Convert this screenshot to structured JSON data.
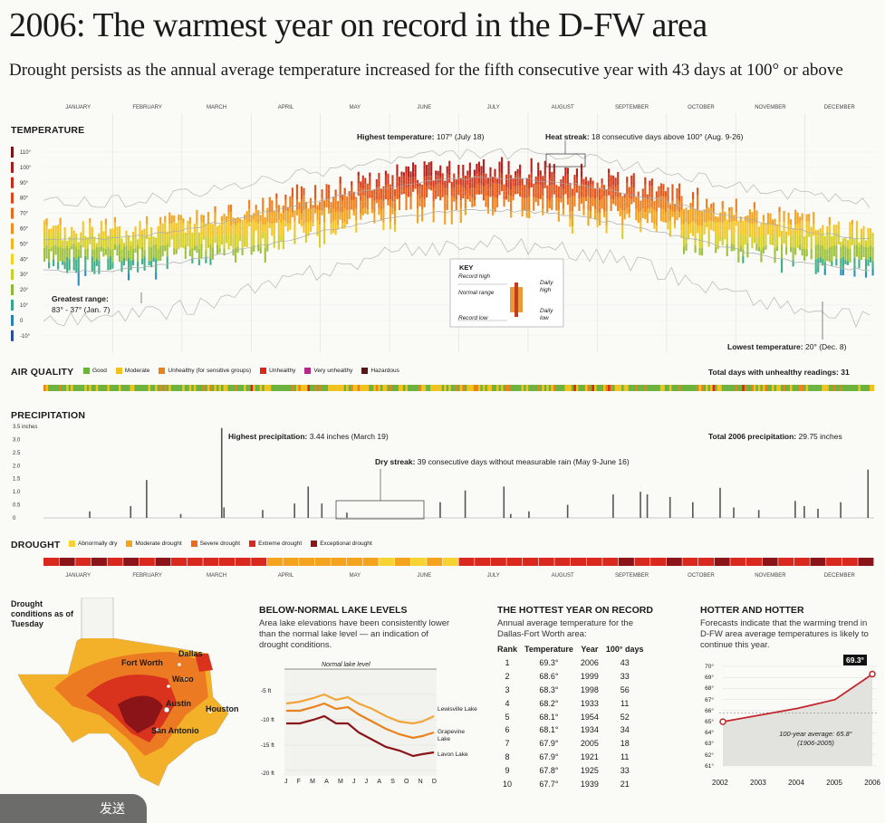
{
  "title": "2006: The warmest year on record in the D-FW area",
  "subtitle": "Drought persists as the annual average temperature increased for the fifth consecutive year with 43 days at 100° or above",
  "months": [
    "JANUARY",
    "FEBRUARY",
    "MARCH",
    "APRIL",
    "MAY",
    "JUNE",
    "JULY",
    "AUGUST",
    "SEPTEMBER",
    "OCTOBER",
    "NOVEMBER",
    "DECEMBER"
  ],
  "temperature": {
    "heading": "TEMPERATURE",
    "ticks": [
      "110°",
      "100°",
      "90°",
      "80°",
      "70°",
      "60°",
      "50°",
      "40°",
      "30°",
      "20°",
      "10°",
      "0",
      "-10°"
    ],
    "tick_colors": [
      "#7a1414",
      "#a51c1c",
      "#c92a1e",
      "#d9471c",
      "#e56a1c",
      "#ef8f1f",
      "#f3b51f",
      "#f2d322",
      "#c8cf2a",
      "#8ab93a",
      "#3aa58a",
      "#2a7fb5",
      "#2a4f9a"
    ],
    "highest_label": "Highest temperature:",
    "highest_value": "107° (July 18)",
    "streak_label": "Heat streak:",
    "streak_value": "18 consecutive days above 100° (Aug. 9-26)",
    "range_label": "Greatest range:",
    "range_value": "83° - 37° (Jan. 7)",
    "lowest_label": "Lowest temperature:",
    "lowest_value": "20° (Dec. 8)",
    "key": {
      "title": "KEY",
      "record_high": "Record high",
      "normal_range": "Normal range",
      "record_low": "Record low",
      "daily_high": "Daily high",
      "daily_low": "Daily low"
    }
  },
  "air_quality": {
    "heading": "AIR QUALITY",
    "legend": [
      {
        "label": "Good",
        "color": "#6cb33e"
      },
      {
        "label": "Moderate",
        "color": "#f2c21c"
      },
      {
        "label": "Unhealthy (for sensitive groups)",
        "color": "#e8821c"
      },
      {
        "label": "Unhealthy",
        "color": "#d9261c"
      },
      {
        "label": "Very unhealthy",
        "color": "#b02a86"
      },
      {
        "label": "Hazardous",
        "color": "#5a1416"
      }
    ],
    "total_label": "Total days with unhealthy readings:",
    "total_value": "31"
  },
  "precipitation": {
    "heading": "PRECIPITATION",
    "ticks": [
      "3.5 inches",
      "3.0",
      "2.5",
      "2.0",
      "1.5",
      "1.0",
      "0.5",
      "0"
    ],
    "highest_label": "Highest precipitation:",
    "highest_value": "3.44 inches (March 19)",
    "total_label": "Total 2006 precipitation:",
    "total_value": "29.75 inches",
    "dry_label": "Dry streak:",
    "dry_value": "39 consecutive days without measurable rain (May 9-June 16)"
  },
  "drought": {
    "heading": "DROUGHT",
    "legend": [
      {
        "label": "Abnormally dry",
        "color": "#f7d233"
      },
      {
        "label": "Moderate drought",
        "color": "#f3a31e"
      },
      {
        "label": "Severe drought",
        "color": "#ec6a1e"
      },
      {
        "label": "Extreme drought",
        "color": "#d9281e"
      },
      {
        "label": "Exceptional drought",
        "color": "#8a1418"
      }
    ]
  },
  "map": {
    "title": "Drought conditions as of Tuesday",
    "cities": [
      "Fort Worth",
      "Dallas",
      "Waco",
      "Austin",
      "Houston",
      "San Antonio"
    ]
  },
  "lake_panel": {
    "title": "BELOW-NORMAL LAKE LEVELS",
    "text": "Area lake elevations have been consistently lower than the normal lake level — an indication of drought conditions.",
    "normal_label": "Normal lake level",
    "y_ticks": [
      "-5 ft",
      "-10 ft",
      "-15 ft",
      "-20 ft"
    ],
    "x_ticks": [
      "J",
      "F",
      "M",
      "A",
      "M",
      "J",
      "J",
      "A",
      "S",
      "O",
      "N",
      "D"
    ],
    "lakes": [
      {
        "name": "Lewisville Lake",
        "color": "#f0a53a"
      },
      {
        "name": "Grapevine Lake",
        "color": "#e8821c"
      },
      {
        "name": "Lavon Lake",
        "color": "#8a1418"
      }
    ]
  },
  "hottest_panel": {
    "title": "THE HOTTEST YEAR ON RECORD",
    "text": "Annual average temperature for the Dallas-Fort Worth area:",
    "headers": [
      "Rank",
      "Temperature",
      "Year",
      "100° days"
    ],
    "rows": [
      [
        "1",
        "69.3°",
        "2006",
        "43"
      ],
      [
        "2",
        "68.6°",
        "1999",
        "33"
      ],
      [
        "3",
        "68.3°",
        "1998",
        "56"
      ],
      [
        "4",
        "68.2°",
        "1933",
        "11"
      ],
      [
        "5",
        "68.1°",
        "1954",
        "52"
      ],
      [
        "6",
        "68.1°",
        "1934",
        "34"
      ],
      [
        "7",
        "67.9°",
        "2005",
        "18"
      ],
      [
        "8",
        "67.9°",
        "1921",
        "11"
      ],
      [
        "9",
        "67.8°",
        "1925",
        "33"
      ],
      [
        "10",
        "67.7°",
        "1939",
        "21"
      ]
    ]
  },
  "hotter_panel": {
    "title": "HOTTER AND HOTTER",
    "text": "Forecasts indicate that the warming trend in D-FW area average temperatures is likely to continue this year.",
    "callout": "69.3°",
    "average_note": "100-year average: 65.8° (1906-2005)",
    "y_ticks": [
      "70°",
      "69°",
      "68°",
      "67°",
      "66°",
      "65°",
      "64°",
      "63°",
      "62°",
      "61°"
    ],
    "x_ticks": [
      "2002",
      "2003",
      "2004",
      "2005",
      "2006"
    ]
  },
  "chart_data": [
    {
      "type": "line",
      "title": "2006: The warmest year on record in the D-FW area",
      "ylabel": "TEMPERATURE",
      "ylim": [
        -10,
        110
      ],
      "note": "Daily high/low bars approximated from gridlines",
      "annotations": [
        {
          "label": "Highest temperature",
          "value": 107,
          "date": "July 18"
        },
        {
          "label": "Greatest range",
          "high": 83,
          "low": 37,
          "date": "Jan. 7"
        },
        {
          "label": "Lowest temperature",
          "value": 20,
          "date": "Dec. 8"
        }
      ]
    },
    {
      "type": "bar",
      "title": "PRECIPITATION",
      "ylim": [
        0,
        3.5
      ],
      "highlights": [
        {
          "date": "March 19",
          "value": 3.44
        }
      ]
    },
    {
      "type": "line",
      "title": "HOTTER AND HOTTER",
      "x": [
        2002,
        2003,
        2004,
        2005,
        2006
      ],
      "series": [
        {
          "values": [
            65.0,
            65.6,
            66.2,
            67.0,
            69.3
          ]
        }
      ],
      "ylim": [
        61,
        70
      ],
      "reference": {
        "value": 65.8
      }
    }
  ]
}
